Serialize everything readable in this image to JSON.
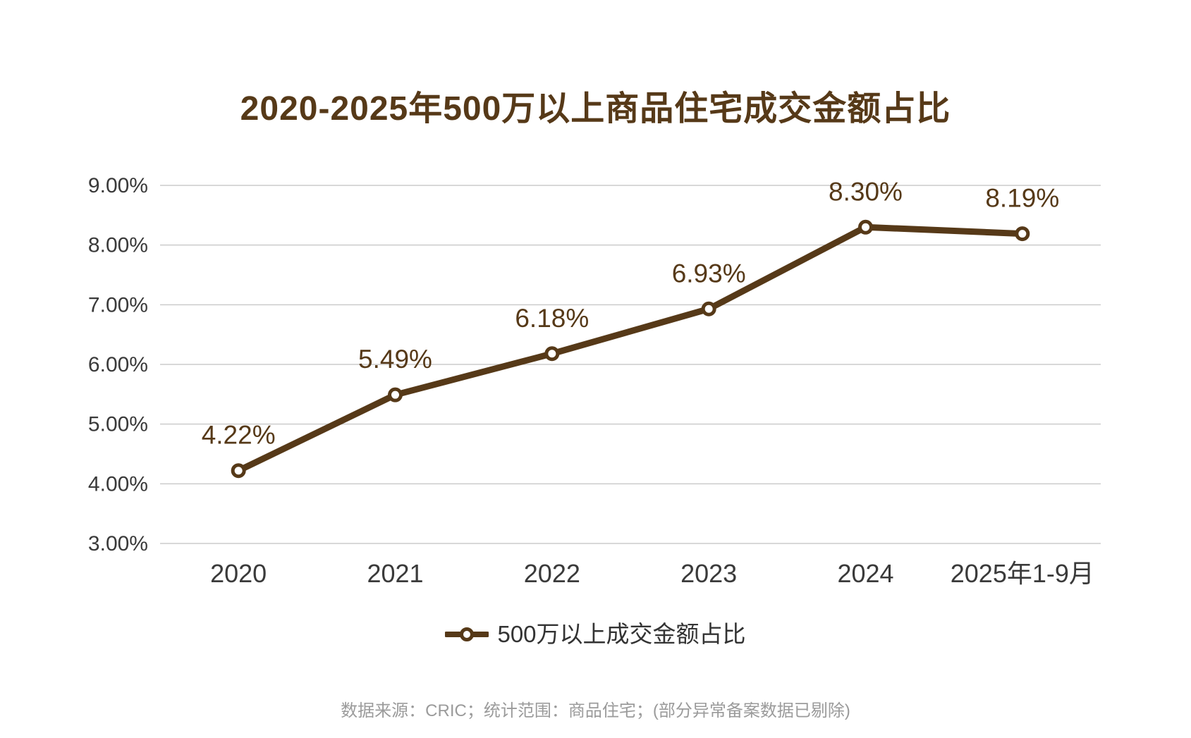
{
  "title": "2020-2025年500万以上商品住宅成交金额占比",
  "legend": {
    "label": "500万以上成交金额占比"
  },
  "footer": "数据来源：CRIC；统计范围：商品住宅；(部分异常备案数据已剔除)",
  "colors": {
    "line": "#563918",
    "title_text": "#563918",
    "axis_text": "#3A3A3A",
    "grid": "#CBCBCB",
    "legend_text": "#333333",
    "footer_text": "#9B9B9B",
    "background": "#FFFFFF",
    "marker_fill": "#FFFFFF"
  },
  "chart_data": {
    "type": "line",
    "title": "2020-2025年500万以上商品住宅成交金额占比",
    "categories": [
      "2020",
      "2021",
      "2022",
      "2023",
      "2024",
      "2025年1-9月"
    ],
    "series": [
      {
        "name": "500万以上成交金额占比",
        "values": [
          4.22,
          5.49,
          6.18,
          6.93,
          8.3,
          8.19
        ]
      }
    ],
    "data_labels": [
      "4.22%",
      "5.49%",
      "6.18%",
      "6.93%",
      "8.30%",
      "8.19%"
    ],
    "y_ticks": [
      "9.00%",
      "8.00%",
      "7.00%",
      "6.00%",
      "5.00%",
      "4.00%",
      "3.00%"
    ],
    "ylim": [
      3,
      9
    ],
    "y_step": 1,
    "xlabel": "",
    "ylabel": "",
    "grid": true,
    "legend_position": "bottom",
    "marker": "open-circle"
  }
}
